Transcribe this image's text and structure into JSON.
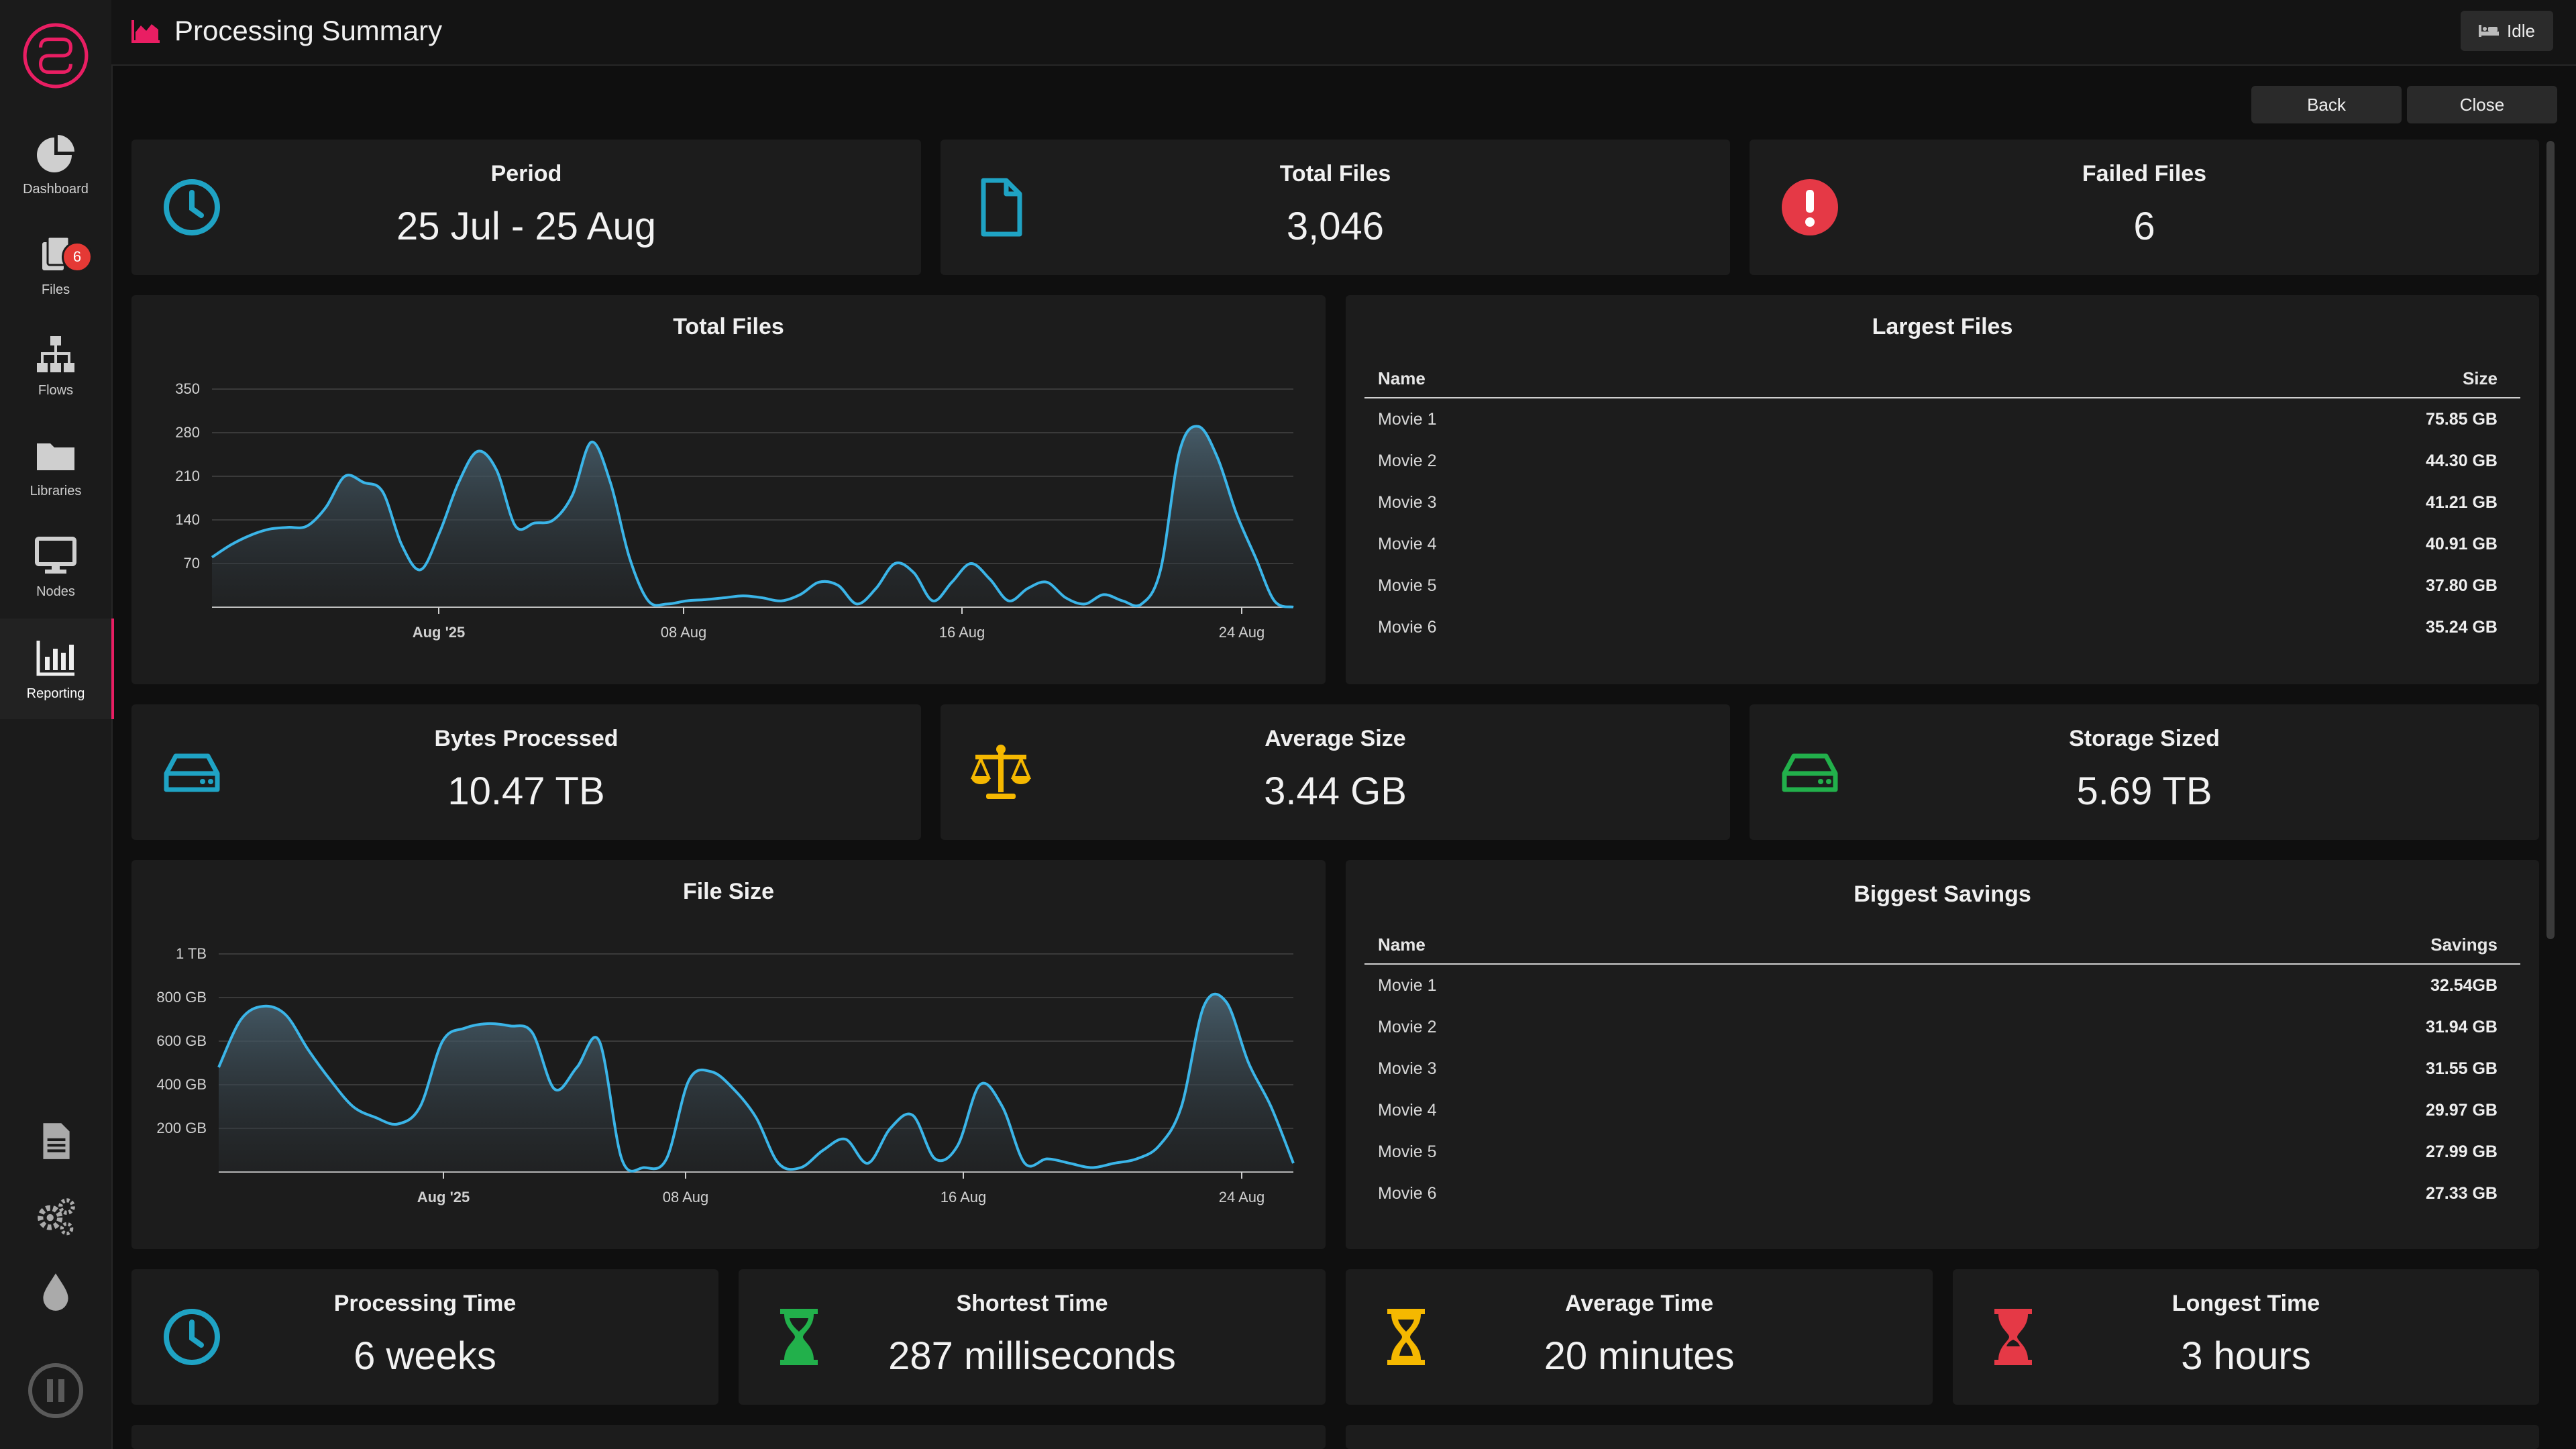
{
  "header": {
    "title": "Processing Summary",
    "status": "Idle"
  },
  "sidebar": {
    "items": [
      {
        "label": "Dashboard",
        "icon": "pie-chart-icon"
      },
      {
        "label": "Files",
        "icon": "files-icon",
        "badge": "6"
      },
      {
        "label": "Flows",
        "icon": "sitemap-icon"
      },
      {
        "label": "Libraries",
        "icon": "folder-icon"
      },
      {
        "label": "Nodes",
        "icon": "monitor-icon"
      },
      {
        "label": "Reporting",
        "icon": "bar-chart-icon",
        "active": true
      }
    ],
    "accent": "#e91e63"
  },
  "actions": {
    "back": "Back",
    "close": "Close"
  },
  "stats_top": [
    {
      "label": "Period",
      "value": "25 Jul - 25 Aug",
      "icon": "clock-icon",
      "color": "#1fa3c4"
    },
    {
      "label": "Total Files",
      "value": "3,046",
      "icon": "file-icon",
      "color": "#1fa3c4"
    },
    {
      "label": "Failed Files",
      "value": "6",
      "icon": "error-icon",
      "color": "#e53946"
    }
  ],
  "stats_mid": [
    {
      "label": "Bytes Processed",
      "value": "10.47 TB",
      "icon": "hard-drive-icon",
      "color": "#1fa3c4"
    },
    {
      "label": "Average Size",
      "value": "3.44 GB",
      "icon": "balance-scale-icon",
      "color": "#f5b800"
    },
    {
      "label": "Storage Sized",
      "value": "5.69 TB",
      "icon": "hard-drive-icon",
      "color": "#22b04b"
    }
  ],
  "stats_bottom": [
    {
      "label": "Processing Time",
      "value": "6 weeks",
      "icon": "clock-icon",
      "color": "#1fa3c4"
    },
    {
      "label": "Shortest Time",
      "value": "287 milliseconds",
      "icon": "hourglass-icon",
      "color": "#22b04b"
    },
    {
      "label": "Average Time",
      "value": "20 minutes",
      "icon": "hourglass-icon",
      "color": "#f5b800"
    },
    {
      "label": "Longest Time",
      "value": "3 hours",
      "icon": "hourglass-icon",
      "color": "#e53946"
    }
  ],
  "largest_files": {
    "title": "Largest Files",
    "col_name": "Name",
    "col_size": "Size",
    "rows": [
      {
        "name": "Movie 1",
        "size": "75.85 GB"
      },
      {
        "name": "Movie 2",
        "size": "44.30 GB"
      },
      {
        "name": "Movie 3",
        "size": "41.21 GB"
      },
      {
        "name": "Movie 4",
        "size": "40.91 GB"
      },
      {
        "name": "Movie 5",
        "size": "37.80 GB"
      },
      {
        "name": "Movie 6",
        "size": "35.24 GB"
      }
    ]
  },
  "biggest_savings": {
    "title": "Biggest Savings",
    "col_name": "Name",
    "col_size": "Savings",
    "rows": [
      {
        "name": "Movie 1",
        "size": "32.54GB"
      },
      {
        "name": "Movie 2",
        "size": "31.94 GB"
      },
      {
        "name": "Movie 3",
        "size": "31.55 GB"
      },
      {
        "name": "Movie 4",
        "size": "29.97 GB"
      },
      {
        "name": "Movie 5",
        "size": "27.99 GB"
      },
      {
        "name": "Movie 6",
        "size": "27.33 GB"
      }
    ]
  },
  "chart_data": [
    {
      "type": "area",
      "title": "Total Files",
      "x_ticks": [
        "Aug '25",
        "08 Aug",
        "16 Aug",
        "24 Aug"
      ],
      "y_ticks": [
        "70",
        "140",
        "210",
        "280",
        "350"
      ],
      "ylim": [
        0,
        350
      ],
      "color": "#3bb5e8",
      "values": [
        80,
        100,
        115,
        125,
        128,
        130,
        160,
        210,
        200,
        185,
        100,
        60,
        120,
        200,
        250,
        220,
        130,
        135,
        140,
        180,
        265,
        200,
        80,
        10,
        5,
        10,
        12,
        15,
        18,
        15,
        10,
        20,
        40,
        35,
        5,
        30,
        70,
        55,
        10,
        40,
        70,
        45,
        10,
        30,
        40,
        15,
        5,
        20,
        10,
        5,
        60,
        250,
        290,
        240,
        150,
        80,
        10,
        0
      ]
    },
    {
      "type": "area",
      "title": "File Size",
      "x_ticks": [
        "Aug '25",
        "08 Aug",
        "16 Aug",
        "24 Aug"
      ],
      "y_ticks": [
        "200 GB",
        "400 GB",
        "600 GB",
        "800 GB",
        "1 TB"
      ],
      "ylim": [
        0,
        1000
      ],
      "unit": "GB",
      "color": "#3bb5e8",
      "values": [
        480,
        700,
        760,
        720,
        560,
        420,
        300,
        250,
        220,
        300,
        600,
        660,
        680,
        670,
        640,
        380,
        480,
        600,
        60,
        20,
        60,
        420,
        460,
        380,
        250,
        40,
        20,
        100,
        150,
        40,
        200,
        260,
        60,
        120,
        400,
        300,
        40,
        60,
        40,
        20,
        40,
        60,
        120,
        300,
        760,
        780,
        500,
        300,
        40
      ]
    }
  ]
}
